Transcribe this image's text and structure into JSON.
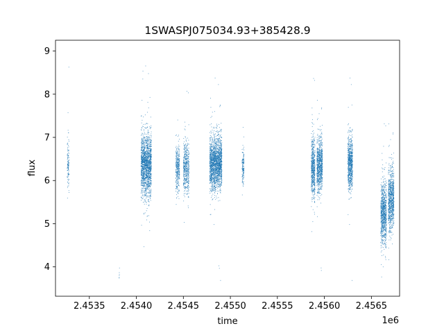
{
  "chart_data": {
    "type": "scatter",
    "title": "1SWASPJ075034.93+385428.9",
    "xlabel": "time",
    "ylabel": "flux",
    "x_offset_label": "1e6",
    "x_scale": 1000000,
    "xlim": [
      2453140,
      2456800
    ],
    "ylim": [
      3.32,
      9.25
    ],
    "x_ticks": [
      2.4535,
      2.454,
      2.4545,
      2.455,
      2.4555,
      2.456,
      2.4565
    ],
    "x_tick_labels": [
      "2.4535",
      "2.4540",
      "2.4545",
      "2.4550",
      "2.4555",
      "2.4560",
      "2.4565"
    ],
    "y_ticks": [
      4,
      5,
      6,
      7,
      8,
      9
    ],
    "y_tick_labels": [
      "4",
      "5",
      "6",
      "7",
      "8",
      "9"
    ],
    "grid": false,
    "marker_color": "#1f77b4",
    "series": [
      {
        "points_note_free": true,
        "clusters": [
          {
            "x_start": 2453265,
            "x_end": 2453285,
            "y_mean": 6.4,
            "y_sd": 0.3,
            "n": 120
          },
          {
            "x_start": 2453815,
            "x_end": 2453825,
            "y_mean": 3.8,
            "y_sd": 0.05,
            "n": 6
          },
          {
            "x_start": 2454050,
            "x_end": 2454160,
            "y_mean": 6.35,
            "y_sd": 0.35,
            "n": 1800
          },
          {
            "x_start": 2454420,
            "x_end": 2454460,
            "y_mean": 6.3,
            "y_sd": 0.25,
            "n": 350
          },
          {
            "x_start": 2454500,
            "x_end": 2454560,
            "y_mean": 6.3,
            "y_sd": 0.3,
            "n": 500
          },
          {
            "x_start": 2454780,
            "x_end": 2454910,
            "y_mean": 6.4,
            "y_sd": 0.3,
            "n": 2000
          },
          {
            "x_start": 2455125,
            "x_end": 2455145,
            "y_mean": 6.35,
            "y_sd": 0.2,
            "n": 150
          },
          {
            "x_start": 2455860,
            "x_end": 2455900,
            "y_mean": 6.3,
            "y_sd": 0.35,
            "n": 600
          },
          {
            "x_start": 2455920,
            "x_end": 2455980,
            "y_mean": 6.35,
            "y_sd": 0.3,
            "n": 900
          },
          {
            "x_start": 2456250,
            "x_end": 2456300,
            "y_mean": 6.4,
            "y_sd": 0.3,
            "n": 800
          },
          {
            "x_start": 2456600,
            "x_end": 2456660,
            "y_mean": 5.25,
            "y_sd": 0.35,
            "n": 900
          },
          {
            "x_start": 2456680,
            "x_end": 2456740,
            "y_mean": 5.55,
            "y_sd": 0.35,
            "n": 900
          }
        ]
      }
    ]
  }
}
